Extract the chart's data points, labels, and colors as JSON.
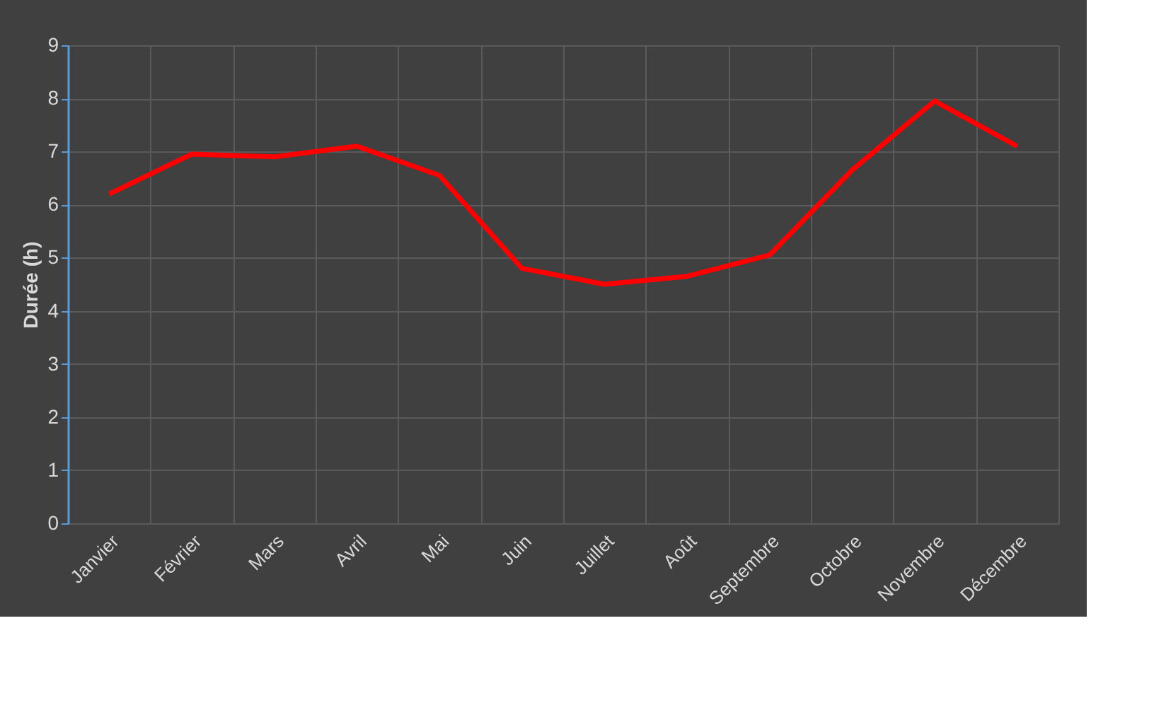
{
  "chart_data": {
    "type": "line",
    "ylabel": "Durée (h)",
    "categories": [
      "Janvier",
      "Février",
      "Mars",
      "Avril",
      "Mai",
      "Juin",
      "Juillet",
      "Août",
      "Septembre",
      "Octobre",
      "Novembre",
      "Décembre"
    ],
    "series": [
      {
        "color": "#ff0000",
        "values": [
          6.2,
          6.95,
          6.9,
          7.1,
          6.55,
          4.8,
          4.5,
          4.65,
          5.05,
          6.65,
          7.95,
          7.1
        ]
      }
    ],
    "ylim": [
      0,
      9
    ],
    "yticks": [
      0,
      1,
      2,
      3,
      4,
      5,
      6,
      7,
      8,
      9
    ],
    "grid": true,
    "legend": false,
    "marker": "none",
    "line_style": "solid"
  }
}
